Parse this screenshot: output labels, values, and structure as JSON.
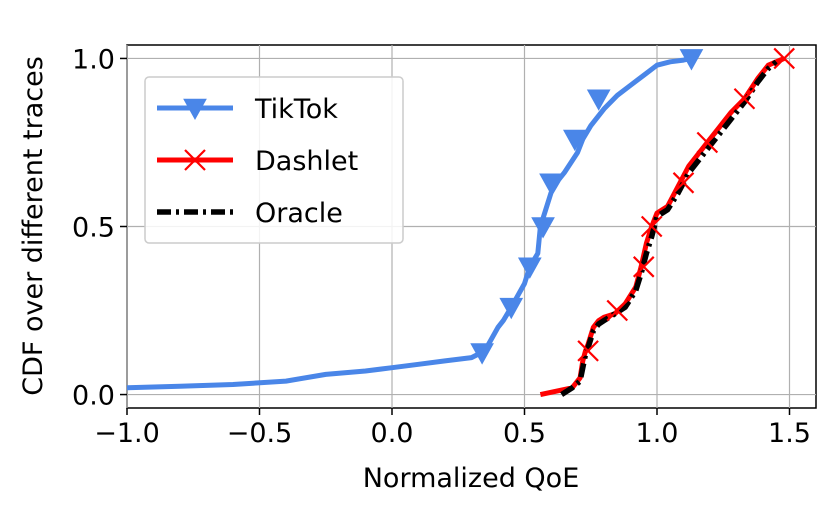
{
  "chart_data": {
    "type": "line",
    "title": "",
    "xlabel": "Normalized QoE",
    "ylabel": "CDF over different traces",
    "xlim": [
      -1.0,
      1.6
    ],
    "ylim": [
      -0.04,
      1.04
    ],
    "xticks": [
      -1.0,
      -0.5,
      0.0,
      0.5,
      1.0,
      1.5
    ],
    "xtick_labels": [
      "−1.0",
      "−0.5",
      "0.0",
      "0.5",
      "1.0",
      "1.5"
    ],
    "yticks": [
      0.0,
      0.5,
      1.0
    ],
    "ytick_labels": [
      "0.0",
      "0.5",
      "1.0"
    ],
    "grid": true,
    "legend_position": "top-left",
    "series": [
      {
        "name": "TikTok",
        "color": "#4a86e8",
        "line_style": "solid",
        "marker": "triangle-down",
        "x": [
          -1.0,
          -0.8,
          -0.6,
          -0.4,
          -0.25,
          -0.1,
          0.0,
          0.1,
          0.2,
          0.3,
          0.35,
          0.4,
          0.42,
          0.45,
          0.5,
          0.52,
          0.55,
          0.56,
          0.58,
          0.6,
          0.63,
          0.65,
          0.7,
          0.72,
          0.75,
          0.8,
          0.85,
          0.9,
          0.95,
          1.0,
          1.05,
          1.1,
          1.13
        ],
        "y": [
          0.02,
          0.025,
          0.03,
          0.04,
          0.06,
          0.07,
          0.08,
          0.09,
          0.1,
          0.11,
          0.13,
          0.2,
          0.22,
          0.26,
          0.33,
          0.38,
          0.42,
          0.5,
          0.55,
          0.6,
          0.64,
          0.66,
          0.72,
          0.76,
          0.8,
          0.85,
          0.89,
          0.92,
          0.95,
          0.98,
          0.99,
          0.995,
          1.0
        ],
        "marker_x": [
          0.34,
          0.45,
          0.52,
          0.57,
          0.6,
          0.69,
          0.78,
          1.13
        ],
        "marker_y": [
          0.125,
          0.26,
          0.38,
          0.5,
          0.63,
          0.76,
          0.88,
          1.0
        ]
      },
      {
        "name": "Dashlet",
        "color": "#ff0000",
        "line_style": "solid",
        "marker": "x",
        "x": [
          0.56,
          0.62,
          0.68,
          0.71,
          0.72,
          0.73,
          0.74,
          0.76,
          0.78,
          0.8,
          0.84,
          0.88,
          0.92,
          0.94,
          0.96,
          0.98,
          1.0,
          1.04,
          1.08,
          1.12,
          1.16,
          1.2,
          1.24,
          1.28,
          1.33,
          1.38,
          1.42,
          1.48
        ],
        "y": [
          0.0,
          0.01,
          0.02,
          0.05,
          0.1,
          0.13,
          0.15,
          0.2,
          0.22,
          0.23,
          0.24,
          0.27,
          0.32,
          0.38,
          0.45,
          0.5,
          0.54,
          0.56,
          0.62,
          0.68,
          0.72,
          0.76,
          0.8,
          0.84,
          0.88,
          0.94,
          0.98,
          1.0
        ],
        "marker_x": [
          0.74,
          0.85,
          0.95,
          0.98,
          1.1,
          1.19,
          1.33,
          1.48
        ],
        "marker_y": [
          0.13,
          0.25,
          0.38,
          0.5,
          0.63,
          0.75,
          0.88,
          1.0
        ]
      },
      {
        "name": "Oracle",
        "color": "#000000",
        "line_style": "dash-dot",
        "marker": "none",
        "x": [
          0.64,
          0.68,
          0.71,
          0.72,
          0.73,
          0.74,
          0.76,
          0.78,
          0.8,
          0.84,
          0.88,
          0.92,
          0.94,
          0.96,
          0.98,
          1.0,
          1.04,
          1.08,
          1.12,
          1.16,
          1.2,
          1.24,
          1.28,
          1.33,
          1.38,
          1.42,
          1.45
        ],
        "y": [
          0.0,
          0.02,
          0.04,
          0.08,
          0.12,
          0.14,
          0.19,
          0.21,
          0.22,
          0.24,
          0.26,
          0.31,
          0.36,
          0.42,
          0.47,
          0.53,
          0.55,
          0.6,
          0.66,
          0.7,
          0.74,
          0.78,
          0.82,
          0.87,
          0.93,
          0.97,
          0.99
        ]
      }
    ]
  }
}
